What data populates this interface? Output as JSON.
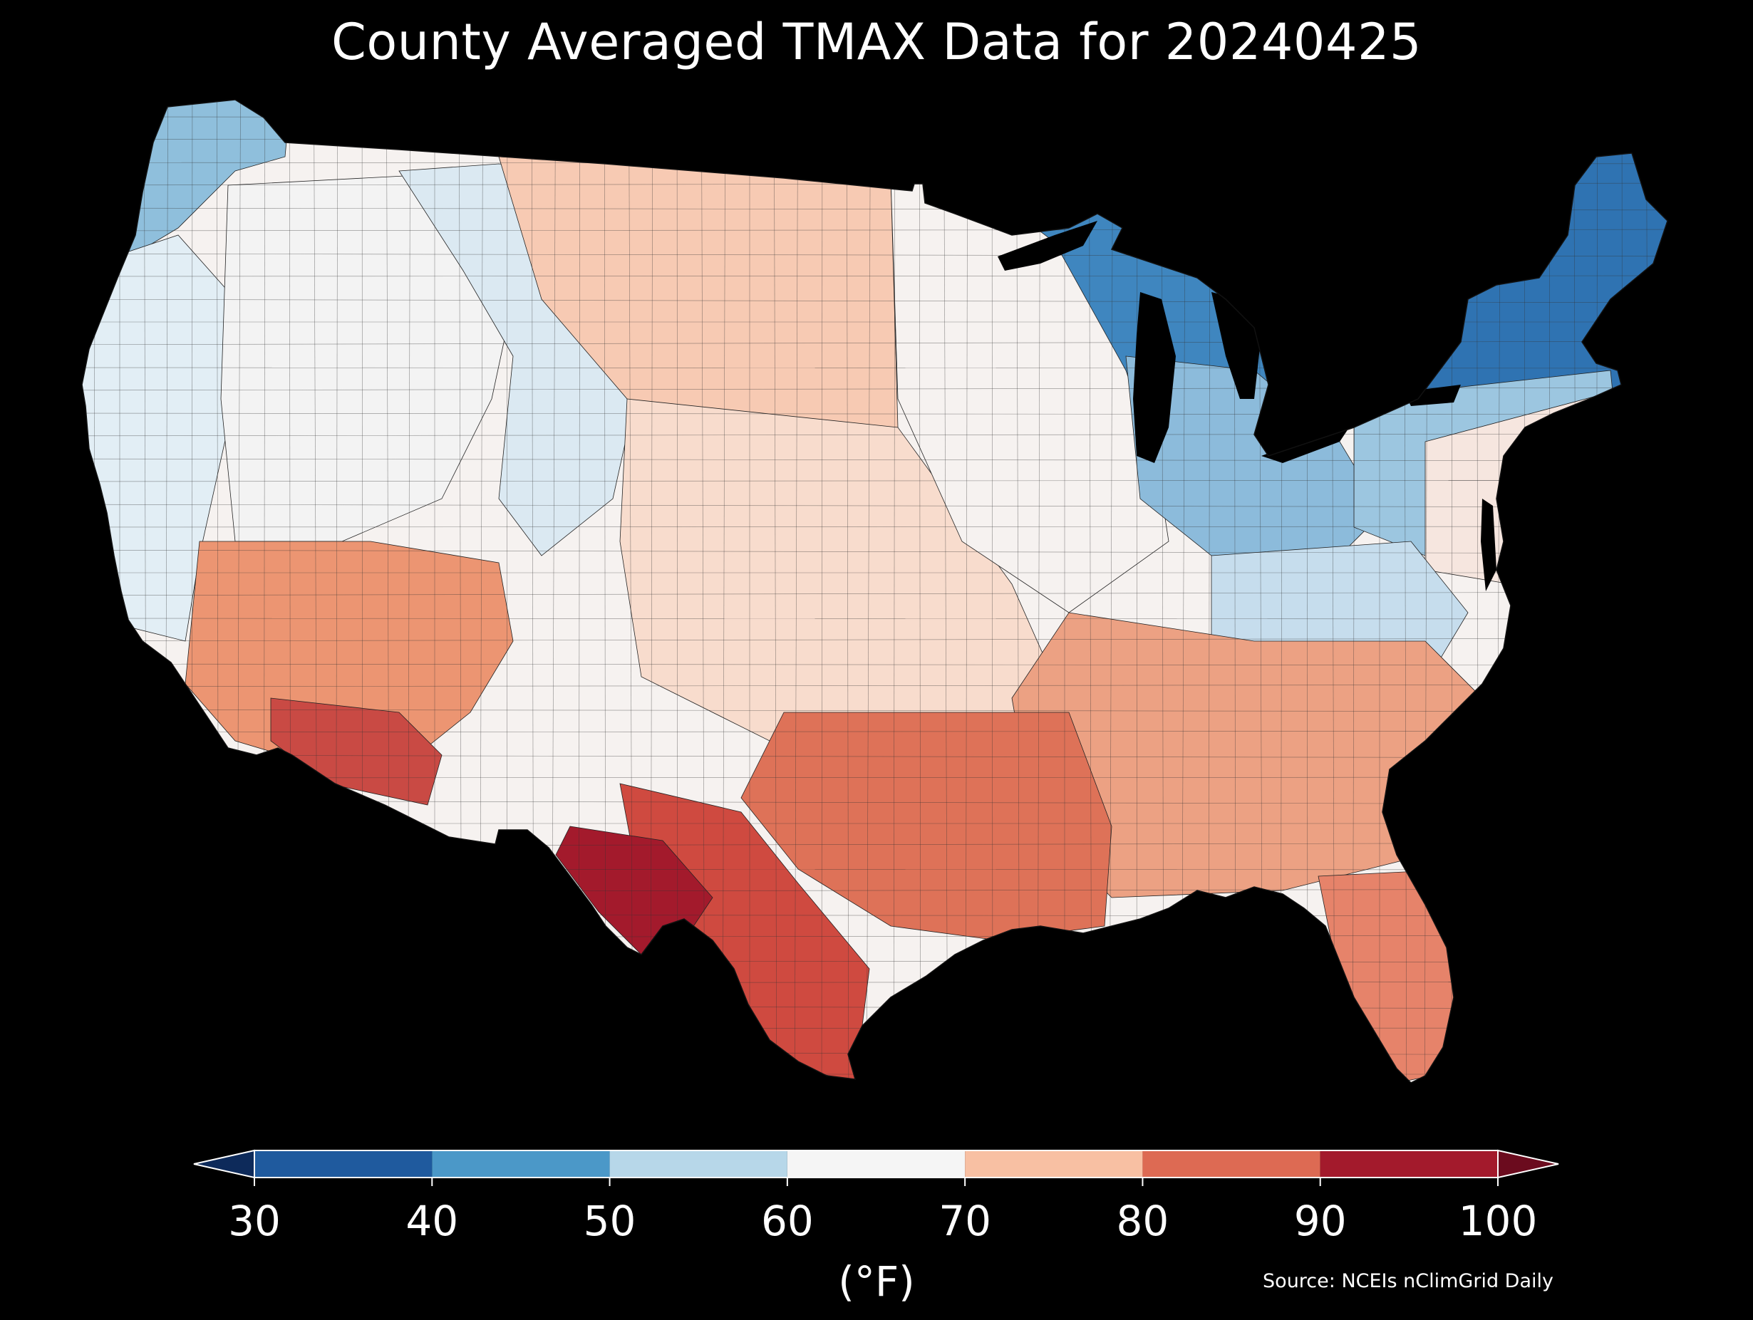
{
  "title": "County Averaged TMAX Data for 20240425",
  "colorbar": {
    "ticks": [
      "30",
      "40",
      "50",
      "60",
      "70",
      "80",
      "90",
      "100"
    ],
    "bins": [
      {
        "from": 30,
        "to": 40,
        "color": "#1f5a9e"
      },
      {
        "from": 40,
        "to": 50,
        "color": "#4b98c8"
      },
      {
        "from": 50,
        "to": 60,
        "color": "#b7d7e9"
      },
      {
        "from": 60,
        "to": 70,
        "color": "#f5f5f5"
      },
      {
        "from": 70,
        "to": 80,
        "color": "#f8c0a3"
      },
      {
        "from": 80,
        "to": 90,
        "color": "#dd6a53"
      },
      {
        "from": 90,
        "to": 100,
        "color": "#a31a2c"
      }
    ],
    "under_color": "#0d2a5a",
    "over_color": "#6b0b1e",
    "unit": "(°F)"
  },
  "source": "Source: NCEIs nClimGrid Daily",
  "map": {
    "region": "contiguous-united-states",
    "background": "#000000",
    "region_colors": {
      "pacific-northwest": "#8fbfdc",
      "west-coast": "#e2eef5",
      "great-basin": "#f3f3f3",
      "rockies": "#dbe9f2",
      "southwest-desert": "#ec9572",
      "far-south-arizona": "#c94a44",
      "west-texas": "#a31a2c",
      "south-texas": "#cf4a40",
      "northern-plains": "#f7cab3",
      "central-plains": "#f8dccd",
      "upper-midwest": "#f6f2f0",
      "great-lakes": "#3f86bf",
      "new-england": "#2f73b2",
      "mid-atlantic": "#f6e6df",
      "southeast": "#eca183",
      "gulf-coast": "#de7258",
      "florida": "#e6836a",
      "appalachian": "#c6dded"
    }
  }
}
